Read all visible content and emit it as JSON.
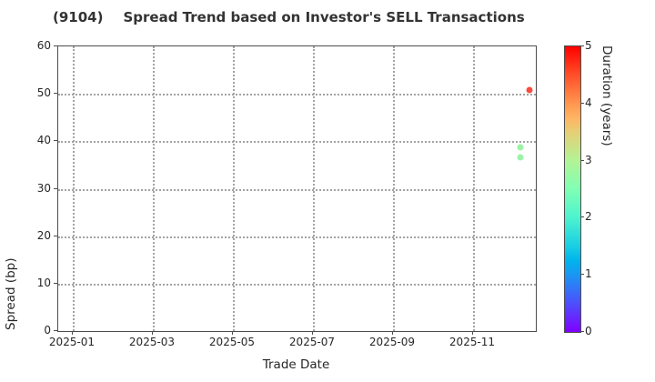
{
  "header": {
    "ticker": "(9104)",
    "title": "Spread Trend based on Investor's SELL Transactions"
  },
  "chart_data": {
    "type": "scatter",
    "title": "(9104)  Spread Trend based on Investor's SELL Transactions",
    "xlabel": "Trade Date",
    "ylabel": "Spread (bp)",
    "ylim": [
      0,
      60
    ],
    "yticks": [
      0,
      10,
      20,
      30,
      40,
      50,
      60
    ],
    "xticks": [
      "2025-01",
      "2025-03",
      "2025-05",
      "2025-07",
      "2025-09",
      "2025-11"
    ],
    "xlim_dates": [
      "2024-12-21",
      "2025-12-18"
    ],
    "grid": "dotted",
    "legend": "none",
    "points": [
      {
        "date": "2025-12-14",
        "spread_bp": 50.6,
        "duration_years": 5.0,
        "color": "#f6392a"
      },
      {
        "date": "2025-12-07",
        "spread_bp": 38.6,
        "duration_years": 2.7,
        "color": "#90f29b"
      },
      {
        "date": "2025-12-07",
        "spread_bp": 36.5,
        "duration_years": 2.7,
        "color": "#90f29b"
      }
    ],
    "colorbar": {
      "label": "Duration (years)",
      "min": 0,
      "max": 5,
      "ticks": [
        0,
        1,
        2,
        3,
        4,
        5
      ],
      "colormap": "rainbow",
      "gradient": [
        {
          "pos": 0.0,
          "color": "#8000ff"
        },
        {
          "pos": 0.1,
          "color": "#4d4ffc"
        },
        {
          "pos": 0.2,
          "color": "#1a96f3"
        },
        {
          "pos": 0.25,
          "color": "#00b4ec"
        },
        {
          "pos": 0.3,
          "color": "#1acee3"
        },
        {
          "pos": 0.4,
          "color": "#4df3ce"
        },
        {
          "pos": 0.5,
          "color": "#80ffb4"
        },
        {
          "pos": 0.6,
          "color": "#b3f396"
        },
        {
          "pos": 0.7,
          "color": "#e6ce74"
        },
        {
          "pos": 0.75,
          "color": "#ffb462"
        },
        {
          "pos": 0.8,
          "color": "#ff964f"
        },
        {
          "pos": 0.9,
          "color": "#ff4f28"
        },
        {
          "pos": 1.0,
          "color": "#ff0000"
        }
      ]
    }
  }
}
